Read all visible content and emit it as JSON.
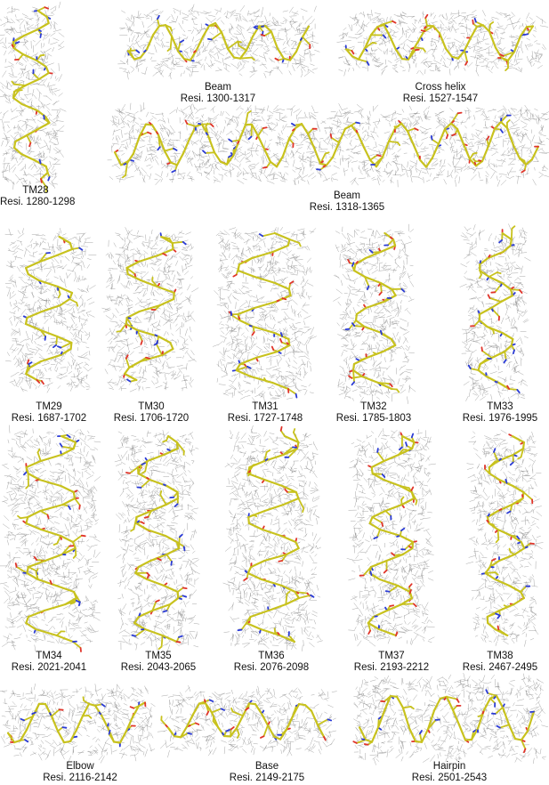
{
  "figure": {
    "panels": [
      {
        "id": "tm28",
        "name": "TM28",
        "residues": "Resi. 1280-1298"
      },
      {
        "id": "beam1",
        "name": "Beam",
        "residues": "Resi. 1300-1317"
      },
      {
        "id": "cross",
        "name": "Cross helix",
        "residues": "Resi. 1527-1547"
      },
      {
        "id": "beam2",
        "name": "Beam",
        "residues": "Resi. 1318-1365"
      },
      {
        "id": "tm29",
        "name": "TM29",
        "residues": "Resi. 1687-1702"
      },
      {
        "id": "tm30",
        "name": "TM30",
        "residues": "Resi. 1706-1720"
      },
      {
        "id": "tm31",
        "name": "TM31",
        "residues": "Resi. 1727-1748"
      },
      {
        "id": "tm32",
        "name": "TM32",
        "residues": "Resi. 1785-1803"
      },
      {
        "id": "tm33",
        "name": "TM33",
        "residues": "Resi. 1976-1995"
      },
      {
        "id": "tm34",
        "name": "TM34",
        "residues": "Resi. 2021-2041"
      },
      {
        "id": "tm35",
        "name": "TM35",
        "residues": "Resi. 2043-2065"
      },
      {
        "id": "tm36",
        "name": "TM36",
        "residues": "Resi. 2076-2098"
      },
      {
        "id": "tm37",
        "name": "TM37",
        "residues": "Resi. 2193-2212"
      },
      {
        "id": "tm38",
        "name": "TM38",
        "residues": "Resi. 2467-2495"
      },
      {
        "id": "elbow",
        "name": "Elbow",
        "residues": "Resi. 2116-2142"
      },
      {
        "id": "base",
        "name": "Base",
        "residues": "Resi. 2149-2175"
      },
      {
        "id": "hairpin",
        "name": "Hairpin",
        "residues": "Resi. 2501-2543"
      }
    ],
    "colors": {
      "carbon": "#c8c21e",
      "nitrogen": "#2b3bd6",
      "oxygen": "#e0342a",
      "density_mesh": "#8a8a8a"
    }
  }
}
